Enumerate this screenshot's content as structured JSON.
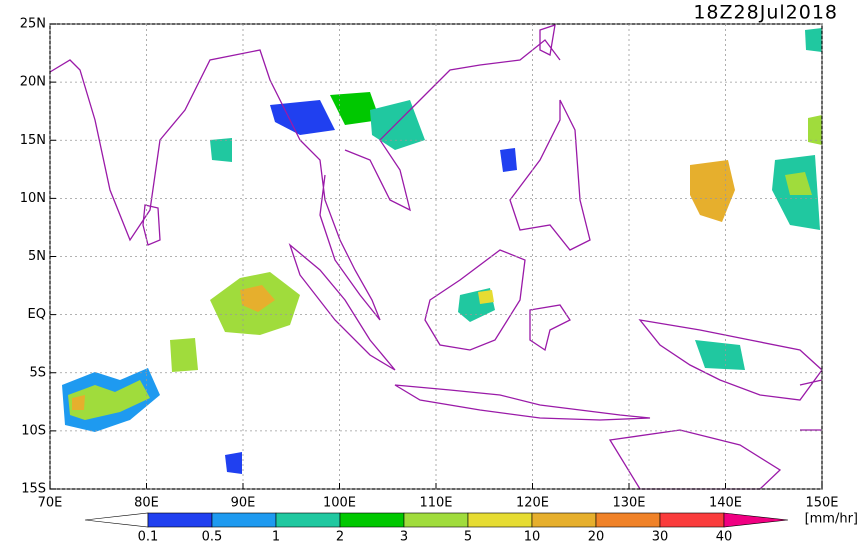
{
  "map": {
    "title": "18Z28Jul2018",
    "lon_lim": [
      70,
      150
    ],
    "lat_lim": [
      -15,
      25
    ],
    "lon_ticks": [
      {
        "value": 70,
        "label": "70E"
      },
      {
        "value": 80,
        "label": "80E"
      },
      {
        "value": 90,
        "label": "90E"
      },
      {
        "value": 100,
        "label": "100E"
      },
      {
        "value": 110,
        "label": "110E"
      },
      {
        "value": 120,
        "label": "120E"
      },
      {
        "value": 130,
        "label": "130E"
      },
      {
        "value": 140,
        "label": "140E"
      },
      {
        "value": 150,
        "label": "150E"
      }
    ],
    "lat_ticks": [
      {
        "value": 25,
        "label": "25N"
      },
      {
        "value": 20,
        "label": "20N"
      },
      {
        "value": 15,
        "label": "15N"
      },
      {
        "value": 10,
        "label": "10N"
      },
      {
        "value": 5,
        "label": "5N"
      },
      {
        "value": 0,
        "label": "EQ"
      },
      {
        "value": -5,
        "label": "5S"
      },
      {
        "value": -10,
        "label": "10S"
      },
      {
        "value": -15,
        "label": "15S"
      }
    ],
    "colorbar": {
      "levels": [
        0.1,
        0.5,
        1,
        2,
        3,
        5,
        10,
        20,
        30,
        40
      ],
      "colors": [
        "#ffffff",
        "#2040f0",
        "#1e9af0",
        "#20c8a0",
        "#00c800",
        "#a0dc3c",
        "#e6dc32",
        "#e6af2d",
        "#f08228",
        "#fa3c3c",
        "#f00082"
      ],
      "unit": "[mm/hr]"
    }
  }
}
